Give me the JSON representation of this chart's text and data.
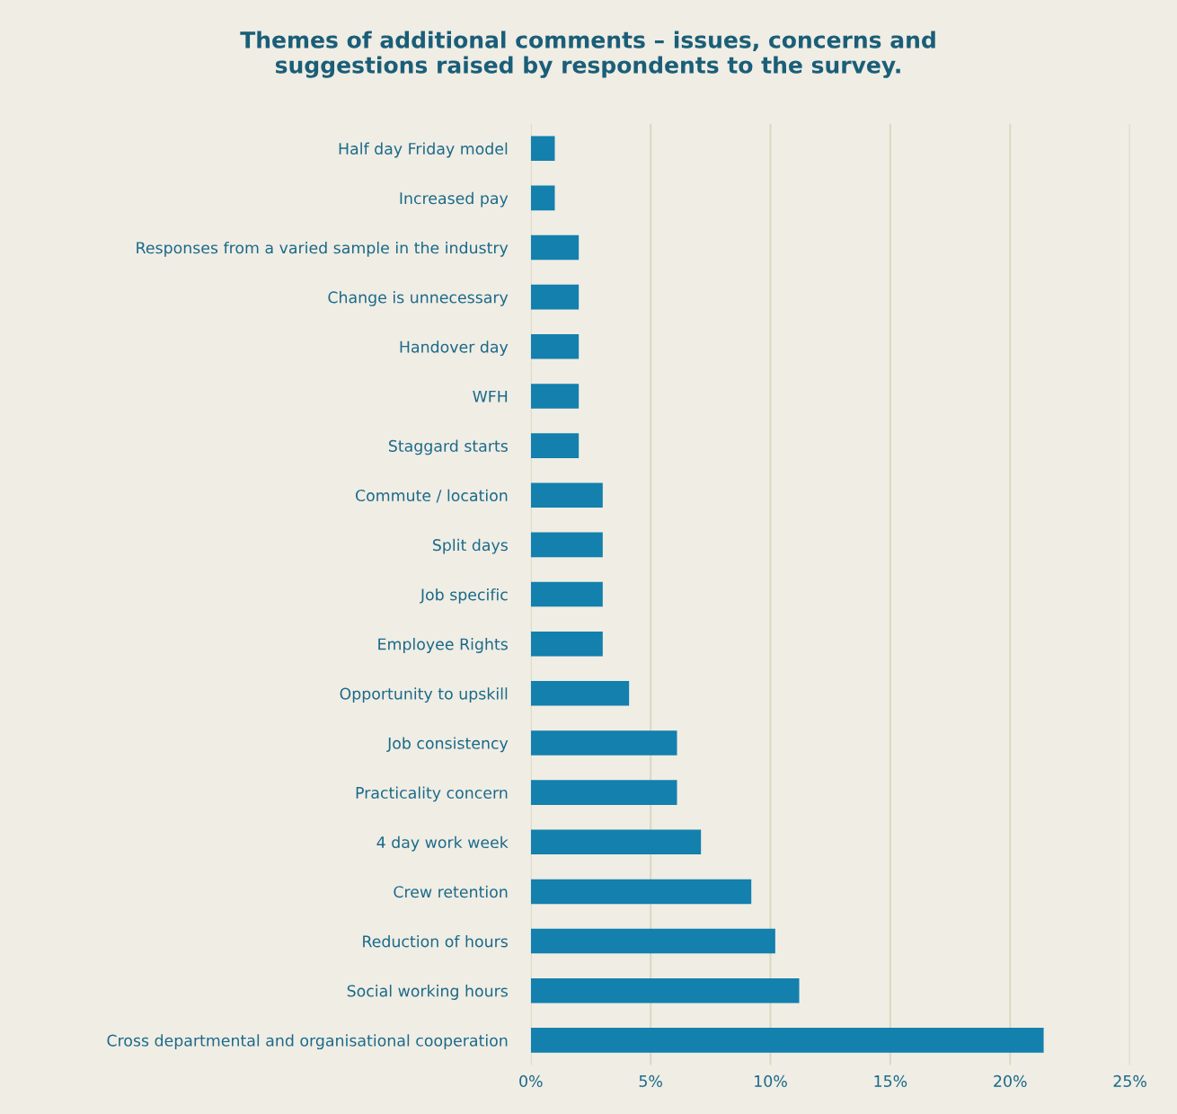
{
  "chart_data": {
    "type": "bar",
    "orientation": "horizontal",
    "title": "Themes of additional comments – issues, concerns and\nsuggestions raised by respondents to the survey.",
    "categories": [
      "Half day Friday model",
      "Increased pay",
      "Responses from a varied sample in the industry",
      "Change is unnecessary",
      "Handover day",
      "WFH",
      "Staggard starts",
      "Commute / location",
      "Split days",
      "Job specific",
      "Employee Rights",
      "Opportunity to upskill",
      "Job consistency",
      "Practicality concern",
      "4 day work week",
      "Crew retention",
      "Reduction of hours",
      "Social working hours",
      "Cross departmental and organisational cooperation"
    ],
    "values": [
      1,
      1,
      2,
      2,
      2,
      2,
      2,
      3,
      3,
      3,
      3,
      4.1,
      6.1,
      6.1,
      7.1,
      9.2,
      10.2,
      11.2,
      21.4
    ],
    "color": "#1380ad",
    "xlim": [
      0,
      25
    ],
    "xticks": [
      {
        "value": 0,
        "label": "0%"
      },
      {
        "value": 5,
        "label": "5%"
      },
      {
        "value": 10,
        "label": "10%"
      },
      {
        "value": 15,
        "label": "15%"
      },
      {
        "value": 20,
        "label": "20%"
      },
      {
        "value": 25,
        "label": "25%"
      }
    ],
    "grid": "x",
    "legend": false
  }
}
